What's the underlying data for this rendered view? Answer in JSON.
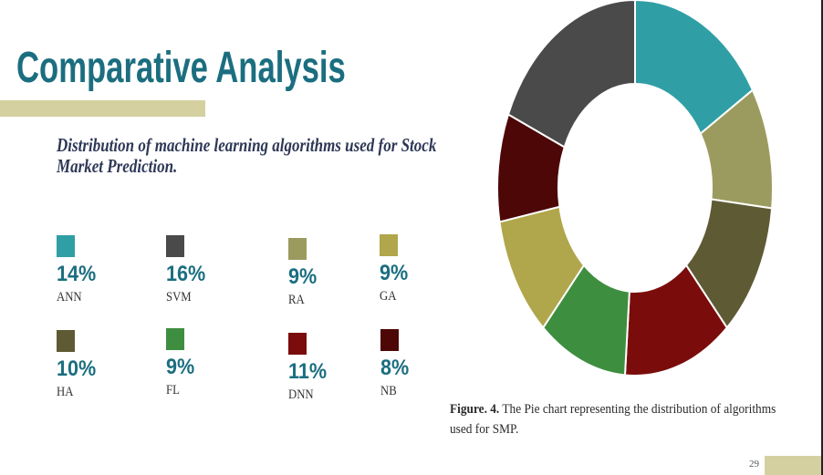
{
  "slide": {
    "title": "Comparative Analysis",
    "page_number": "29"
  },
  "colors": {
    "title": "#1b6e80",
    "accent": "#d5d0a0",
    "subtitle": "#2d3856",
    "percent": "#1b6e80"
  },
  "chart_data": {
    "type": "pie",
    "variant": "donut",
    "legend_position": "left",
    "title_lines": [
      "Distribution of machine learning algorithms used for Stock",
      "Market Prediction."
    ],
    "caption": {
      "label": "Figure. 4.",
      "lines": [
        "The Pie chart representing the distribution of algorithms",
        "used for SMP."
      ]
    },
    "slices": [
      {
        "label": "ANN",
        "value": 14,
        "display": "14%",
        "color": "#2f9fa5"
      },
      {
        "label": "RA",
        "value": 9,
        "display": "9%",
        "color": "#9c9b5f"
      },
      {
        "label": "HA",
        "value": 10,
        "display": "10%",
        "color": "#5e5a34"
      },
      {
        "label": "DNN",
        "value": 11,
        "display": "11%",
        "color": "#7b0c0c"
      },
      {
        "label": "FL",
        "value": 9,
        "display": "9%",
        "color": "#3e8e40"
      },
      {
        "label": "GA",
        "value": 9,
        "display": "9%",
        "color": "#b0a64b"
      },
      {
        "label": "NB",
        "value": 8,
        "display": "8%",
        "color": "#4d0707"
      },
      {
        "label": "SVM",
        "value": 16,
        "display": "16%",
        "color": "#4a4a4a"
      }
    ]
  }
}
